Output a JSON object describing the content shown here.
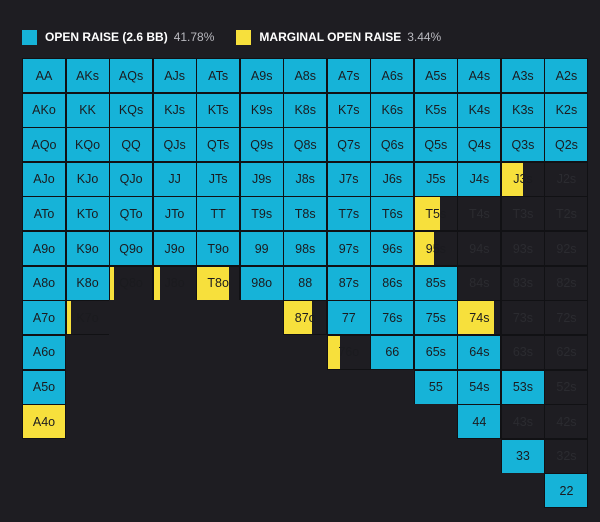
{
  "chart_data": {
    "type": "heatmap",
    "ranks": [
      "A",
      "K",
      "Q",
      "J",
      "T",
      "9",
      "8",
      "7",
      "6",
      "5",
      "4",
      "3",
      "2"
    ],
    "legend": [
      {
        "key": "open",
        "label": "OPEN RAISE (2.6 BB)",
        "pct": "41.78%",
        "color": "#16b3d8"
      },
      {
        "key": "marginal",
        "label": "MARGINAL OPEN RAISE",
        "pct": "3.44%",
        "color": "#f7e03c"
      }
    ],
    "empty_color": "#1e1d22",
    "rows": [
      [
        [
          1,
          0
        ],
        [
          1,
          0
        ],
        [
          1,
          0
        ],
        [
          1,
          0
        ],
        [
          1,
          0
        ],
        [
          1,
          0
        ],
        [
          1,
          0
        ],
        [
          1,
          0
        ],
        [
          1,
          0
        ],
        [
          1,
          0
        ],
        [
          1,
          0
        ],
        [
          1,
          0
        ],
        [
          1,
          0
        ]
      ],
      [
        [
          1,
          0
        ],
        [
          1,
          0
        ],
        [
          1,
          0
        ],
        [
          1,
          0
        ],
        [
          1,
          0
        ],
        [
          1,
          0
        ],
        [
          1,
          0
        ],
        [
          1,
          0
        ],
        [
          1,
          0
        ],
        [
          1,
          0
        ],
        [
          1,
          0
        ],
        [
          1,
          0
        ],
        [
          1,
          0
        ]
      ],
      [
        [
          1,
          0
        ],
        [
          1,
          0
        ],
        [
          1,
          0
        ],
        [
          1,
          0
        ],
        [
          1,
          0
        ],
        [
          1,
          0
        ],
        [
          1,
          0
        ],
        [
          1,
          0
        ],
        [
          1,
          0
        ],
        [
          1,
          0
        ],
        [
          1,
          0
        ],
        [
          1,
          0
        ],
        [
          1,
          0
        ]
      ],
      [
        [
          1,
          0
        ],
        [
          1,
          0
        ],
        [
          1,
          0
        ],
        [
          1,
          0
        ],
        [
          1,
          0
        ],
        [
          1,
          0
        ],
        [
          1,
          0
        ],
        [
          1,
          0
        ],
        [
          1,
          0
        ],
        [
          1,
          0
        ],
        [
          1,
          0
        ],
        [
          0,
          0.5
        ],
        [
          0,
          0
        ]
      ],
      [
        [
          1,
          0
        ],
        [
          1,
          0
        ],
        [
          1,
          0
        ],
        [
          1,
          0
        ],
        [
          1,
          0
        ],
        [
          1,
          0
        ],
        [
          1,
          0
        ],
        [
          1,
          0
        ],
        [
          1,
          0
        ],
        [
          0,
          0.6
        ],
        [
          0,
          0
        ],
        [
          0,
          0
        ],
        [
          0,
          0
        ]
      ],
      [
        [
          1,
          0
        ],
        [
          1,
          0
        ],
        [
          1,
          0
        ],
        [
          1,
          0
        ],
        [
          1,
          0
        ],
        [
          1,
          0
        ],
        [
          1,
          0
        ],
        [
          1,
          0
        ],
        [
          1,
          0
        ],
        [
          0,
          0.45
        ],
        [
          0,
          0
        ],
        [
          0,
          0
        ],
        [
          0,
          0
        ]
      ],
      [
        [
          1,
          0
        ],
        [
          1,
          0
        ],
        [
          0,
          0.1
        ],
        [
          0,
          0.15
        ],
        [
          0,
          0.75
        ],
        [
          1,
          0
        ],
        [
          1,
          0
        ],
        [
          1,
          0
        ],
        [
          1,
          0
        ],
        [
          1,
          0
        ],
        [
          0,
          0
        ],
        [
          0,
          0
        ],
        [
          0,
          0
        ]
      ],
      [
        [
          1,
          0
        ],
        [
          0,
          0.1
        ],
        [
          0,
          0
        ],
        [
          0,
          0
        ],
        [
          0,
          0
        ],
        [
          0,
          0
        ],
        [
          0,
          0.65
        ],
        [
          1,
          0
        ],
        [
          1,
          0
        ],
        [
          1,
          0
        ],
        [
          0,
          0.85
        ],
        [
          0,
          0
        ],
        [
          0,
          0
        ]
      ],
      [
        [
          1,
          0
        ],
        [
          0,
          0
        ],
        [
          0,
          0
        ],
        [
          0,
          0
        ],
        [
          0,
          0
        ],
        [
          0,
          0
        ],
        [
          0,
          0
        ],
        [
          0,
          0.3
        ],
        [
          1,
          0
        ],
        [
          1,
          0
        ],
        [
          1,
          0
        ],
        [
          0,
          0
        ],
        [
          0,
          0
        ]
      ],
      [
        [
          1,
          0
        ],
        [
          0,
          0
        ],
        [
          0,
          0
        ],
        [
          0,
          0
        ],
        [
          0,
          0
        ],
        [
          0,
          0
        ],
        [
          0,
          0
        ],
        [
          0,
          0
        ],
        [
          0,
          0
        ],
        [
          1,
          0
        ],
        [
          1,
          0
        ],
        [
          1,
          0
        ],
        [
          0,
          0
        ]
      ],
      [
        [
          0,
          1
        ],
        [
          0,
          0
        ],
        [
          0,
          0
        ],
        [
          0,
          0
        ],
        [
          0,
          0
        ],
        [
          0,
          0
        ],
        [
          0,
          0
        ],
        [
          0,
          0
        ],
        [
          0,
          0
        ],
        [
          0,
          0
        ],
        [
          1,
          0
        ],
        [
          0,
          0
        ],
        [
          0,
          0
        ]
      ],
      [
        [
          0,
          0
        ],
        [
          0,
          0
        ],
        [
          0,
          0
        ],
        [
          0,
          0
        ],
        [
          0,
          0
        ],
        [
          0,
          0
        ],
        [
          0,
          0
        ],
        [
          0,
          0
        ],
        [
          0,
          0
        ],
        [
          0,
          0
        ],
        [
          0,
          0
        ],
        [
          1,
          0
        ],
        [
          0,
          0
        ]
      ],
      [
        [
          0,
          0
        ],
        [
          0,
          0
        ],
        [
          0,
          0
        ],
        [
          0,
          0
        ],
        [
          0,
          0
        ],
        [
          0,
          0
        ],
        [
          0,
          0
        ],
        [
          0,
          0
        ],
        [
          0,
          0
        ],
        [
          0,
          0
        ],
        [
          0,
          0
        ],
        [
          0,
          0
        ],
        [
          1,
          0
        ]
      ]
    ]
  }
}
